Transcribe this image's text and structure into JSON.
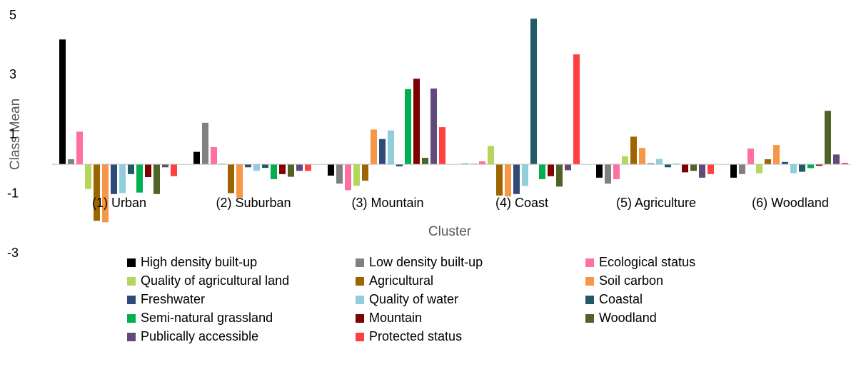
{
  "chart_data": {
    "type": "bar",
    "ylabel": "Class Mean",
    "xlabel": "Cluster",
    "categories": [
      "(1) Urban",
      "(2) Suburban",
      "(3) Mountain",
      "(4) Coast",
      "(5) Agriculture",
      "(6) Woodland"
    ],
    "ylim": [
      -3,
      5
    ],
    "yticks": [
      -3,
      -1,
      1,
      3,
      5
    ],
    "series": [
      {
        "name": "High density built-up",
        "color": "#000000",
        "values": [
          4.2,
          0.42,
          -0.38,
          0.02,
          -0.45,
          -0.45
        ]
      },
      {
        "name": "Low density built-up",
        "color": "#808080",
        "values": [
          0.17,
          1.4,
          -0.65,
          0.02,
          -0.65,
          -0.33
        ]
      },
      {
        "name": "Ecological status",
        "color": "#ff6f9f",
        "values": [
          1.1,
          0.58,
          -0.87,
          0.1,
          -0.5,
          0.53
        ]
      },
      {
        "name": "Quality of agricultural land",
        "color": "#b4d65a",
        "values": [
          -0.83,
          0.03,
          -0.72,
          0.62,
          0.27,
          -0.3
        ]
      },
      {
        "name": "Agricultural",
        "color": "#9c6500",
        "values": [
          -1.9,
          -0.97,
          -0.55,
          -1.05,
          0.93,
          0.17
        ]
      },
      {
        "name": "Soil carbon",
        "color": "#f79646",
        "values": [
          -1.95,
          -1.12,
          1.17,
          -1.08,
          0.55,
          0.65
        ]
      },
      {
        "name": "Freshwater",
        "color": "#2e4a7a",
        "values": [
          -1.0,
          -0.1,
          0.85,
          -1.0,
          0.03,
          0.08
        ]
      },
      {
        "name": "Quality of water",
        "color": "#92cddc",
        "values": [
          -0.97,
          -0.22,
          1.14,
          -0.73,
          0.18,
          -0.3
        ]
      },
      {
        "name": "Coastal",
        "color": "#215967",
        "values": [
          -0.33,
          -0.12,
          -0.07,
          4.9,
          -0.1,
          -0.25
        ]
      },
      {
        "name": "Semi-natural grassland",
        "color": "#00b050",
        "values": [
          -0.95,
          -0.5,
          2.53,
          -0.5,
          0.02,
          -0.13
        ]
      },
      {
        "name": "Mountain",
        "color": "#7f0000",
        "values": [
          -0.43,
          -0.33,
          2.88,
          -0.4,
          -0.27,
          -0.05
        ]
      },
      {
        "name": "Woodland",
        "color": "#4f6228",
        "values": [
          -1.0,
          -0.42,
          0.22,
          -0.75,
          -0.22,
          1.8
        ]
      },
      {
        "name": "Publically accessible",
        "color": "#604a7b",
        "values": [
          -0.1,
          -0.22,
          2.55,
          -0.2,
          -0.45,
          0.33
        ]
      },
      {
        "name": "Protected status",
        "color": "#ff4040",
        "values": [
          -0.4,
          -0.22,
          1.25,
          3.7,
          -0.33,
          0.05
        ]
      }
    ]
  }
}
